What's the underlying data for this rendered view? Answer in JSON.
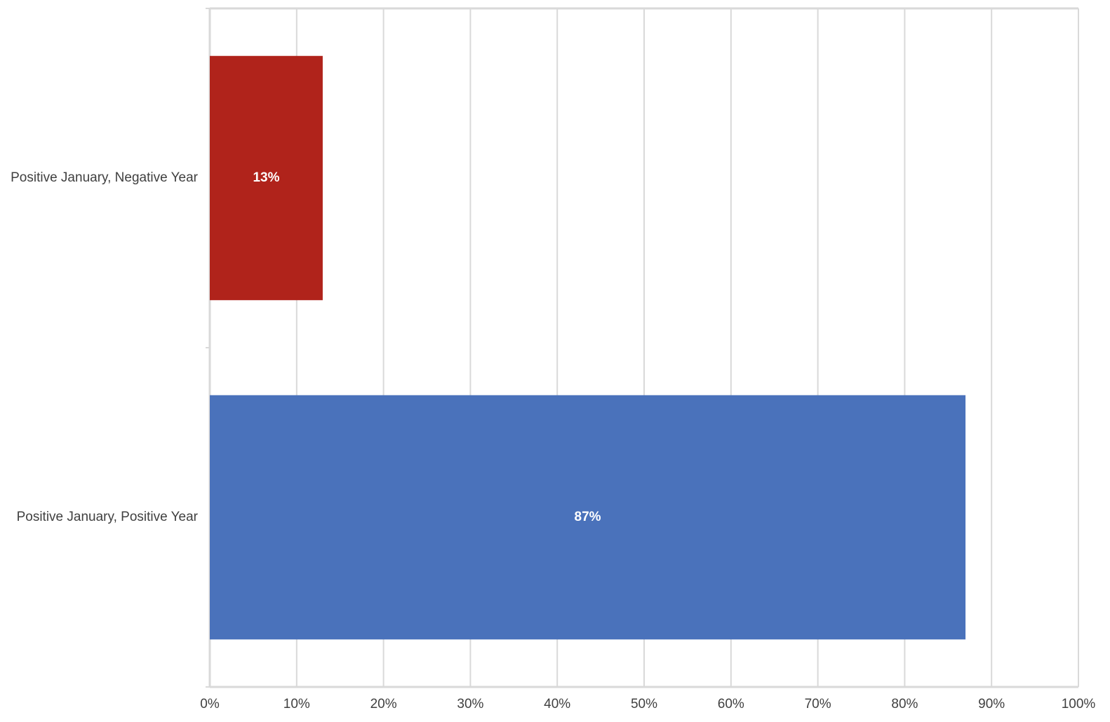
{
  "chart_data": {
    "type": "barh",
    "categories": [
      "Positive January, Negative Year",
      "Positive January, Positive Year"
    ],
    "values": [
      13,
      87
    ],
    "value_labels": [
      "13%",
      "87%"
    ],
    "colors": [
      "#b0231b",
      "#4a72bb"
    ],
    "xlim": [
      0,
      100
    ],
    "xticks": [
      {
        "value": 0,
        "label": "0%"
      },
      {
        "value": 10,
        "label": "10%"
      },
      {
        "value": 20,
        "label": "20%"
      },
      {
        "value": 30,
        "label": "30%"
      },
      {
        "value": 40,
        "label": "40%"
      },
      {
        "value": 50,
        "label": "50%"
      },
      {
        "value": 60,
        "label": "60%"
      },
      {
        "value": 70,
        "label": "70%"
      },
      {
        "value": 80,
        "label": "80%"
      },
      {
        "value": 90,
        "label": "90%"
      },
      {
        "value": 100,
        "label": "100%"
      }
    ],
    "grid": true
  }
}
